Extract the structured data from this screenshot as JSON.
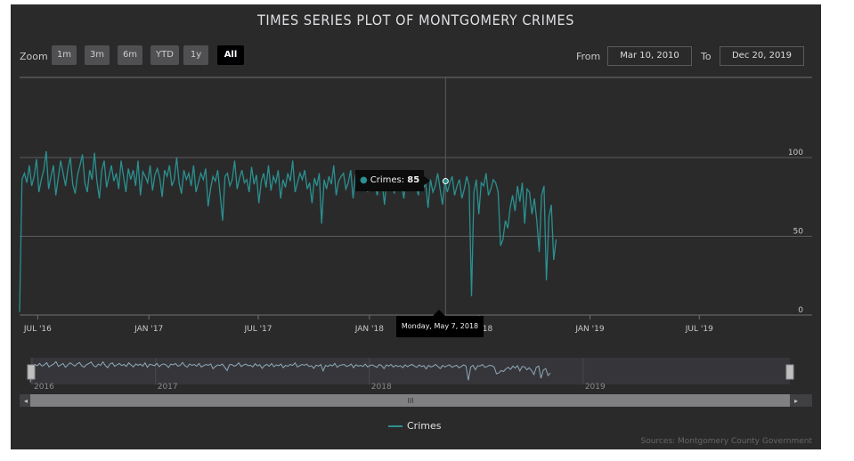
{
  "title": "TIMES SERIES PLOT OF MONTGOMERY CRIMES",
  "zoom": {
    "label": "Zoom",
    "buttons": [
      {
        "label": "1m",
        "active": false
      },
      {
        "label": "3m",
        "active": false
      },
      {
        "label": "6m",
        "active": false
      },
      {
        "label": "YTD",
        "active": false
      },
      {
        "label": "1y",
        "active": false
      },
      {
        "label": "All",
        "active": true
      }
    ]
  },
  "range": {
    "from_label": "From",
    "from_value": "Mar 10, 2010",
    "to_label": "To",
    "to_value": "Dec 20, 2019"
  },
  "tooltip": {
    "series": "Crimes",
    "value": "85"
  },
  "crosshair_label": "Monday, May 7, 2018",
  "legend": {
    "label": "Crimes"
  },
  "credits": "Sources: Montgomery County Government",
  "navigator": {
    "labels": [
      "2016",
      "2017",
      "2018",
      "2019"
    ],
    "handle_glyph": "III"
  },
  "colors": {
    "series": "#2b908f",
    "background": "#2a2a2b",
    "grid": "#707073"
  },
  "chart_data": {
    "type": "line",
    "title": "TIMES SERIES PLOT OF MONTGOMERY CRIMES",
    "x_start": "2016-06-01",
    "x_end": "2019-12-20",
    "ylim": [
      0,
      100
    ],
    "yticks": [
      "0",
      "50",
      "100"
    ],
    "xticks": [
      "Jul '16",
      "Jan '17",
      "Jul '17",
      "Jan '18",
      "Jul '18",
      "Jan '19",
      "Jul '19"
    ],
    "grid": true,
    "legend_position": "bottom-center",
    "series": [
      {
        "name": "Crimes",
        "start": "2016-06-01",
        "step_days": 4,
        "values": [
          2,
          86,
          90,
          84,
          95,
          82,
          88,
          99,
          78,
          86,
          92,
          104,
          80,
          88,
          95,
          76,
          87,
          98,
          90,
          82,
          93,
          100,
          83,
          77,
          89,
          95,
          102,
          84,
          78,
          92,
          86,
          103,
          85,
          74,
          92,
          98,
          81,
          88,
          95,
          85,
          90,
          80,
          98,
          88,
          78,
          93,
          86,
          92,
          82,
          98,
          76,
          91,
          88,
          84,
          95,
          79,
          89,
          93,
          87,
          75,
          92,
          88,
          95,
          82,
          86,
          100,
          84,
          77,
          92,
          86,
          90,
          82,
          95,
          78,
          84,
          90,
          86,
          93,
          69,
          80,
          88,
          85,
          92,
          76,
          60,
          88,
          90,
          82,
          86,
          98,
          80,
          87,
          92,
          84,
          86,
          78,
          94,
          83,
          89,
          71,
          85,
          90,
          81,
          95,
          79,
          88,
          84,
          92,
          74,
          86,
          81,
          90,
          85,
          98,
          78,
          84,
          90,
          86,
          92,
          80,
          84,
          71,
          87,
          82,
          90,
          58,
          86,
          80,
          88,
          83,
          95,
          76,
          85,
          88,
          90,
          80,
          84,
          92,
          74,
          89,
          82,
          86,
          80,
          92,
          78,
          85,
          88,
          82,
          76,
          90,
          84,
          70,
          88,
          82,
          90,
          77,
          86,
          80,
          84,
          74,
          88,
          79,
          86,
          90,
          82,
          76,
          88,
          80,
          84,
          68,
          86,
          78,
          82,
          90,
          80,
          70,
          85,
          78,
          84,
          88,
          76,
          82,
          86,
          74,
          80,
          88,
          82,
          12,
          78,
          86,
          64,
          84,
          82,
          90,
          76,
          80,
          86,
          84,
          78,
          44,
          48,
          60,
          55,
          68,
          76,
          66,
          82,
          72,
          84,
          58,
          80,
          78,
          64,
          74,
          60,
          40,
          76,
          82,
          22,
          62,
          70,
          35,
          48
        ]
      }
    ]
  }
}
